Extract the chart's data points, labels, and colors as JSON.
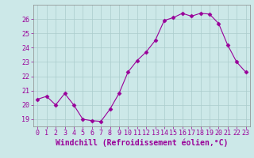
{
  "x": [
    0,
    1,
    2,
    3,
    4,
    5,
    6,
    7,
    8,
    9,
    10,
    11,
    12,
    13,
    14,
    15,
    16,
    17,
    18,
    19,
    20,
    21,
    22,
    23
  ],
  "y": [
    20.4,
    20.6,
    20.0,
    20.8,
    20.0,
    19.0,
    18.9,
    18.85,
    19.7,
    20.8,
    22.3,
    23.1,
    23.7,
    24.5,
    25.9,
    26.1,
    26.4,
    26.2,
    26.4,
    26.35,
    25.7,
    24.2,
    23.0,
    22.3
  ],
  "line_color": "#990099",
  "marker": "D",
  "marker_size": 2.5,
  "bg_color": "#cce8e8",
  "grid_color": "#aacccc",
  "xlabel": "Windchill (Refroidissement éolien,°C)",
  "xlabel_fontsize": 7,
  "yticks": [
    19,
    20,
    21,
    22,
    23,
    24,
    25,
    26
  ],
  "xticks": [
    0,
    1,
    2,
    3,
    4,
    5,
    6,
    7,
    8,
    9,
    10,
    11,
    12,
    13,
    14,
    15,
    16,
    17,
    18,
    19,
    20,
    21,
    22,
    23
  ],
  "ylim": [
    18.5,
    27.0
  ],
  "xlim": [
    -0.5,
    23.5
  ],
  "tick_color": "#990099",
  "tick_fontsize": 6,
  "axis_color": "#990099",
  "spine_color": "#888888"
}
